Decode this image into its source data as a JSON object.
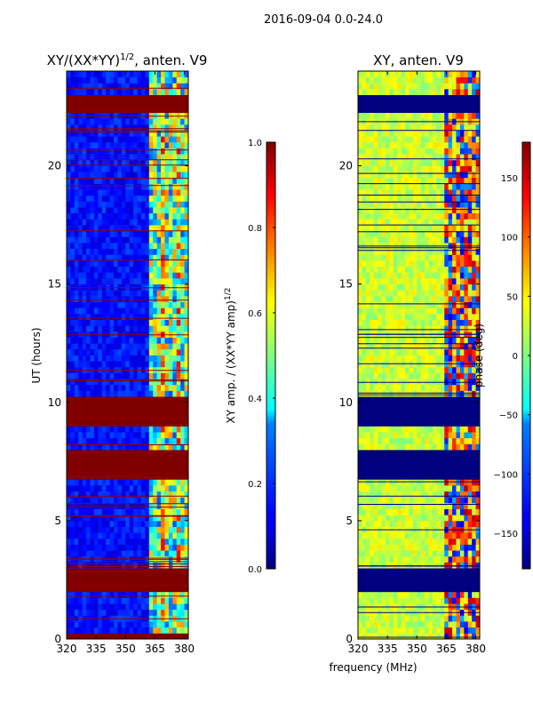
{
  "chart_data": [
    {
      "type": "heatmap",
      "suptitle": "2016-09-04 0.0-24.0",
      "title_main": "XY/(XX*YY)",
      "title_sup": "1/2",
      "title_tail": ", anten. V9",
      "ylabel": "UT (hours)",
      "xlabel": "",
      "x_ticks": [
        "320",
        "335",
        "350",
        "365",
        "380"
      ],
      "x_tick_values": [
        320,
        335,
        350,
        365,
        380
      ],
      "y_ticks": [
        "0",
        "5",
        "10",
        "15",
        "20"
      ],
      "y_tick_values": [
        0,
        5,
        10,
        15,
        20
      ],
      "xlim": [
        320,
        382
      ],
      "ylim": [
        0,
        24
      ],
      "colormap": "jet",
      "masked_bands_hours": [
        [
          0.0,
          0.25
        ],
        [
          2.0,
          3.0
        ],
        [
          6.7,
          8.0
        ],
        [
          9.0,
          10.3
        ],
        [
          22.3,
          23.1
        ]
      ],
      "colorbar": {
        "label_main": "XY amp. / (XX*YY amp)",
        "label_sup": "1/2",
        "range": [
          0.0,
          1.0
        ],
        "ticks": [
          "0.0",
          "0.2",
          "0.4",
          "0.6",
          "0.8",
          "1.0"
        ],
        "tick_values": [
          0.0,
          0.2,
          0.4,
          0.6,
          0.8,
          1.0
        ]
      }
    },
    {
      "type": "heatmap",
      "title": "XY, anten. V9",
      "xlabel": "frequency (MHz)",
      "x_ticks": [
        "320",
        "335",
        "350",
        "365",
        "380"
      ],
      "x_tick_values": [
        320,
        335,
        350,
        365,
        380
      ],
      "y_ticks": [
        "0",
        "5",
        "10",
        "15",
        "20"
      ],
      "y_tick_values": [
        0,
        5,
        10,
        15,
        20
      ],
      "xlim": [
        320,
        382
      ],
      "ylim": [
        0,
        24
      ],
      "colormap": "jet",
      "masked_bands_hours": [
        [
          2.0,
          3.0
        ],
        [
          6.7,
          8.0
        ],
        [
          9.0,
          10.3
        ],
        [
          22.3,
          23.1
        ]
      ],
      "colorbar": {
        "label": "phase (deg)",
        "range": [
          -180,
          180
        ],
        "ticks": [
          "150",
          "100",
          "50",
          "0",
          "−50",
          "−100",
          "−150"
        ],
        "tick_values": [
          150,
          100,
          50,
          0,
          -50,
          -100,
          -150
        ]
      }
    }
  ]
}
